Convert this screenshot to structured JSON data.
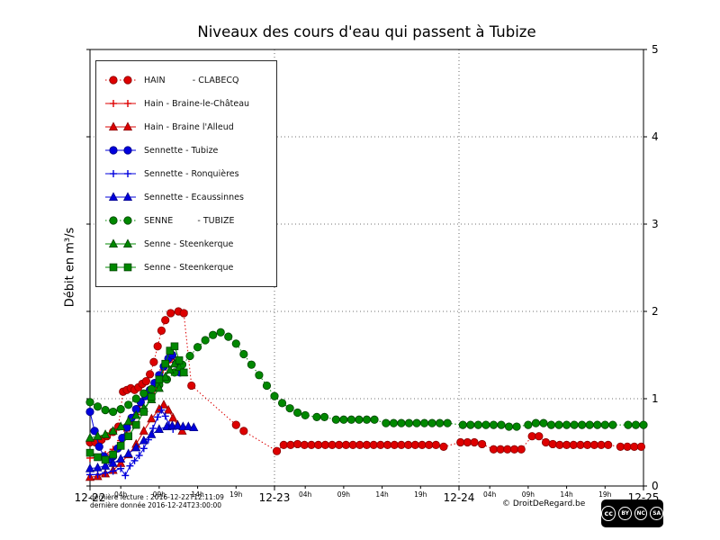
{
  "title": "Niveaux des cours d'eau qui passent à Tubize",
  "axis": {
    "ylabel": "Débit en m³/s"
  },
  "footer": {
    "last_read": "dernière lecture : 2016-12-22T12:11:09",
    "last_data": "dernière donnée  2016-12-24T23:00:00",
    "copyright": "© DroitDeRegard.be",
    "license_badges": [
      "cc",
      "BY",
      "NC",
      "SA"
    ]
  },
  "chart_data": {
    "type": "line",
    "title": "Niveaux des cours d'eau qui passent à Tubize",
    "xlabel": "",
    "ylabel": "Débit en m³/s",
    "x_unit": "hours since 2016-12-22 00:00",
    "xlim": [
      0,
      72
    ],
    "ylim": [
      0,
      5
    ],
    "grid": "dotted",
    "legend_position": "upper left",
    "yticks": [
      0,
      1,
      2,
      3,
      4,
      5
    ],
    "xticks": [
      {
        "t": 0,
        "label": "12-22",
        "major": true
      },
      {
        "t": 4,
        "label": "04h",
        "major": false
      },
      {
        "t": 9,
        "label": "09h",
        "major": false
      },
      {
        "t": 14,
        "label": "14h",
        "major": false
      },
      {
        "t": 19,
        "label": "19h",
        "major": false
      },
      {
        "t": 24,
        "label": "12-23",
        "major": true
      },
      {
        "t": 28,
        "label": "04h",
        "major": false
      },
      {
        "t": 33,
        "label": "09h",
        "major": false
      },
      {
        "t": 38,
        "label": "14h",
        "major": false
      },
      {
        "t": 43,
        "label": "19h",
        "major": false
      },
      {
        "t": 48,
        "label": "12-24",
        "major": true
      },
      {
        "t": 52,
        "label": "04h",
        "major": false
      },
      {
        "t": 57,
        "label": "09h",
        "major": false
      },
      {
        "t": 62,
        "label": "14h",
        "major": false
      },
      {
        "t": 67,
        "label": "19h",
        "major": false
      },
      {
        "t": 72,
        "label": "12-25",
        "major": true
      }
    ],
    "series": [
      {
        "name": "HAIN          - CLABECQ",
        "color": "#dd0000",
        "edge": "#880000",
        "marker": "circle",
        "line": "dotted",
        "points": [
          [
            0,
            0.5
          ],
          [
            0.7,
            0.5
          ],
          [
            1.5,
            0.53
          ],
          [
            2.2,
            0.57
          ],
          [
            3,
            0.62
          ],
          [
            3.7,
            0.68
          ],
          [
            4.3,
            1.08
          ],
          [
            4.8,
            1.1
          ],
          [
            5.3,
            1.12
          ],
          [
            5.8,
            1.1
          ],
          [
            6.3,
            1.13
          ],
          [
            6.8,
            1.17
          ],
          [
            7.3,
            1.2
          ],
          [
            7.8,
            1.28
          ],
          [
            8.3,
            1.42
          ],
          [
            8.8,
            1.6
          ],
          [
            9.3,
            1.78
          ],
          [
            9.8,
            1.9
          ],
          [
            10.5,
            1.98
          ],
          [
            11.5,
            2.0
          ],
          [
            12.2,
            1.98
          ],
          [
            13.2,
            1.15
          ],
          [
            19,
            0.7
          ],
          [
            20,
            0.63
          ],
          [
            24.3,
            0.4
          ],
          [
            25.2,
            0.47
          ],
          [
            26.1,
            0.47
          ],
          [
            27,
            0.48
          ],
          [
            27.9,
            0.47
          ],
          [
            28.8,
            0.47
          ],
          [
            29.7,
            0.47
          ],
          [
            30.6,
            0.47
          ],
          [
            31.5,
            0.47
          ],
          [
            32.4,
            0.47
          ],
          [
            33.3,
            0.47
          ],
          [
            34.2,
            0.47
          ],
          [
            35.1,
            0.47
          ],
          [
            36,
            0.47
          ],
          [
            36.9,
            0.47
          ],
          [
            37.8,
            0.47
          ],
          [
            38.7,
            0.47
          ],
          [
            39.6,
            0.47
          ],
          [
            40.5,
            0.47
          ],
          [
            41.4,
            0.47
          ],
          [
            42.3,
            0.47
          ],
          [
            43.2,
            0.47
          ],
          [
            44.1,
            0.47
          ],
          [
            45,
            0.47
          ],
          [
            46,
            0.45
          ],
          [
            48.2,
            0.5
          ],
          [
            49.1,
            0.5
          ],
          [
            50,
            0.5
          ],
          [
            51,
            0.48
          ],
          [
            52.5,
            0.42
          ],
          [
            53.4,
            0.42
          ],
          [
            54.3,
            0.42
          ],
          [
            55.2,
            0.42
          ],
          [
            56.1,
            0.42
          ],
          [
            57.5,
            0.57
          ],
          [
            58.4,
            0.57
          ],
          [
            59.3,
            0.5
          ],
          [
            60.2,
            0.48
          ],
          [
            61.1,
            0.47
          ],
          [
            62,
            0.47
          ],
          [
            62.9,
            0.47
          ],
          [
            63.8,
            0.47
          ],
          [
            64.7,
            0.47
          ],
          [
            65.6,
            0.47
          ],
          [
            66.5,
            0.47
          ],
          [
            67.4,
            0.47
          ],
          [
            69,
            0.45
          ],
          [
            69.9,
            0.45
          ],
          [
            70.8,
            0.45
          ],
          [
            71.7,
            0.45
          ]
        ]
      },
      {
        "name": "Hain - Braine-le-Château",
        "color": "#dd0000",
        "edge": "#880000",
        "marker": "plus",
        "line": "solid",
        "points": [
          [
            0,
            0.32
          ],
          [
            1,
            0.33
          ],
          [
            2,
            0.36
          ],
          [
            3,
            0.42
          ],
          [
            4,
            0.52
          ],
          [
            4.8,
            0.63
          ],
          [
            5.5,
            0.73
          ],
          [
            6,
            0.82
          ],
          [
            6.5,
            0.92
          ],
          [
            7,
            1.0
          ],
          [
            7.5,
            1.03
          ],
          [
            8,
            1.07
          ],
          [
            8.5,
            1.12
          ],
          [
            9,
            1.22
          ],
          [
            9.5,
            1.33
          ],
          [
            10,
            1.41
          ],
          [
            10.5,
            1.45
          ],
          [
            11,
            1.42
          ],
          [
            11.6,
            1.37
          ]
        ]
      },
      {
        "name": "Hain - Braine l'Alleud",
        "color": "#dd0000",
        "edge": "#880000",
        "marker": "triangle",
        "line": "solid",
        "points": [
          [
            0,
            0.1
          ],
          [
            1,
            0.11
          ],
          [
            2,
            0.14
          ],
          [
            3,
            0.18
          ],
          [
            4,
            0.26
          ],
          [
            5,
            0.36
          ],
          [
            6,
            0.48
          ],
          [
            7,
            0.63
          ],
          [
            8,
            0.77
          ],
          [
            9,
            0.88
          ],
          [
            9.6,
            0.93
          ],
          [
            10.2,
            0.87
          ],
          [
            10.8,
            0.78
          ],
          [
            11.4,
            0.7
          ],
          [
            12,
            0.63
          ]
        ]
      },
      {
        "name": "Sennette - Tubize",
        "color": "#0000dd",
        "edge": "#000088",
        "marker": "circle",
        "line": "solid",
        "points": [
          [
            0,
            0.85
          ],
          [
            0.6,
            0.63
          ],
          [
            1.2,
            0.45
          ],
          [
            1.8,
            0.34
          ],
          [
            2.4,
            0.3
          ],
          [
            3,
            0.34
          ],
          [
            3.6,
            0.43
          ],
          [
            4.2,
            0.55
          ],
          [
            4.8,
            0.67
          ],
          [
            5.4,
            0.78
          ],
          [
            6,
            0.88
          ],
          [
            6.6,
            0.96
          ],
          [
            7.2,
            1.03
          ],
          [
            7.8,
            1.1
          ],
          [
            8.4,
            1.18
          ],
          [
            9,
            1.27
          ],
          [
            9.6,
            1.37
          ],
          [
            10.2,
            1.46
          ],
          [
            10.7,
            1.5
          ],
          [
            11.2,
            1.4
          ],
          [
            11.7,
            1.3
          ]
        ]
      },
      {
        "name": "Sennette - Ronquières",
        "color": "#0000dd",
        "edge": "#000088",
        "marker": "plus",
        "line": "solid",
        "points": [
          [
            0,
            0.13
          ],
          [
            1,
            0.13
          ],
          [
            2,
            0.15
          ],
          [
            3,
            0.17
          ],
          [
            4,
            0.2
          ],
          [
            4.6,
            0.12
          ],
          [
            5.2,
            0.23
          ],
          [
            5.8,
            0.29
          ],
          [
            6.4,
            0.35
          ],
          [
            7,
            0.43
          ],
          [
            7.6,
            0.53
          ],
          [
            8.2,
            0.66
          ],
          [
            8.8,
            0.79
          ],
          [
            9.3,
            0.87
          ],
          [
            9.8,
            0.8
          ],
          [
            10.3,
            0.7
          ],
          [
            10.8,
            0.65
          ]
        ]
      },
      {
        "name": "Sennette - Ecaussinnes",
        "color": "#0000dd",
        "edge": "#000088",
        "marker": "triangle",
        "line": "solid",
        "points": [
          [
            0,
            0.2
          ],
          [
            1,
            0.21
          ],
          [
            2,
            0.23
          ],
          [
            3,
            0.26
          ],
          [
            4,
            0.31
          ],
          [
            5,
            0.37
          ],
          [
            6,
            0.44
          ],
          [
            7,
            0.52
          ],
          [
            8,
            0.59
          ],
          [
            9,
            0.65
          ],
          [
            10,
            0.68
          ],
          [
            10.7,
            0.69
          ],
          [
            11.4,
            0.69
          ],
          [
            12.1,
            0.68
          ],
          [
            12.8,
            0.68
          ],
          [
            13.5,
            0.67
          ]
        ]
      },
      {
        "name": "SENNE         - TUBIZE",
        "color": "#008800",
        "edge": "#004400",
        "marker": "circle",
        "line": "dotted",
        "points": [
          [
            0,
            0.96
          ],
          [
            1,
            0.91
          ],
          [
            2,
            0.87
          ],
          [
            3,
            0.85
          ],
          [
            4,
            0.88
          ],
          [
            5,
            0.93
          ],
          [
            6,
            1.0
          ],
          [
            7,
            1.06
          ],
          [
            8,
            1.11
          ],
          [
            9,
            1.16
          ],
          [
            10,
            1.22
          ],
          [
            11,
            1.3
          ],
          [
            12,
            1.39
          ],
          [
            13,
            1.49
          ],
          [
            14,
            1.59
          ],
          [
            15,
            1.67
          ],
          [
            16,
            1.73
          ],
          [
            17,
            1.76
          ],
          [
            18,
            1.71
          ],
          [
            19,
            1.63
          ],
          [
            20,
            1.51
          ],
          [
            21,
            1.39
          ],
          [
            22,
            1.27
          ],
          [
            23,
            1.15
          ],
          [
            24,
            1.03
          ],
          [
            25,
            0.95
          ],
          [
            26,
            0.89
          ],
          [
            27,
            0.84
          ],
          [
            28,
            0.81
          ],
          [
            29.5,
            0.79
          ],
          [
            30.5,
            0.79
          ],
          [
            32,
            0.76
          ],
          [
            33,
            0.76
          ],
          [
            34,
            0.76
          ],
          [
            35,
            0.76
          ],
          [
            36,
            0.76
          ],
          [
            37,
            0.76
          ],
          [
            38.5,
            0.72
          ],
          [
            39.5,
            0.72
          ],
          [
            40.5,
            0.72
          ],
          [
            41.5,
            0.72
          ],
          [
            42.5,
            0.72
          ],
          [
            43.5,
            0.72
          ],
          [
            44.5,
            0.72
          ],
          [
            45.5,
            0.72
          ],
          [
            46.5,
            0.72
          ],
          [
            48.5,
            0.7
          ],
          [
            49.5,
            0.7
          ],
          [
            50.5,
            0.7
          ],
          [
            51.5,
            0.7
          ],
          [
            52.5,
            0.7
          ],
          [
            53.5,
            0.7
          ],
          [
            54.5,
            0.68
          ],
          [
            55.5,
            0.68
          ],
          [
            57,
            0.7
          ],
          [
            58,
            0.72
          ],
          [
            59,
            0.72
          ],
          [
            60,
            0.7
          ],
          [
            61,
            0.7
          ],
          [
            62,
            0.7
          ],
          [
            63,
            0.7
          ],
          [
            64,
            0.7
          ],
          [
            65,
            0.7
          ],
          [
            66,
            0.7
          ],
          [
            67,
            0.7
          ],
          [
            68,
            0.7
          ],
          [
            70,
            0.7
          ],
          [
            71,
            0.7
          ],
          [
            72,
            0.7
          ]
        ]
      },
      {
        "name": "Senne - Steenkerque",
        "color": "#008800",
        "edge": "#004400",
        "marker": "triangle",
        "line": "solid",
        "points": [
          [
            0,
            0.55
          ],
          [
            1,
            0.57
          ],
          [
            2,
            0.59
          ],
          [
            3,
            0.63
          ],
          [
            4,
            0.68
          ],
          [
            5,
            0.74
          ],
          [
            6,
            0.81
          ],
          [
            7,
            0.89
          ],
          [
            8,
            0.99
          ],
          [
            9,
            1.12
          ],
          [
            9.8,
            1.25
          ],
          [
            10.4,
            1.33
          ],
          [
            11,
            1.4
          ],
          [
            11.6,
            1.36
          ],
          [
            12.2,
            1.3
          ]
        ]
      },
      {
        "name": "Senne - Steenkerque",
        "color": "#008800",
        "edge": "#004400",
        "marker": "square",
        "line": "solid",
        "points": [
          [
            0,
            0.38
          ],
          [
            1,
            0.33
          ],
          [
            2,
            0.3
          ],
          [
            3,
            0.36
          ],
          [
            4,
            0.46
          ],
          [
            5,
            0.57
          ],
          [
            6,
            0.7
          ],
          [
            7,
            0.85
          ],
          [
            8,
            1.02
          ],
          [
            9,
            1.22
          ],
          [
            9.8,
            1.4
          ],
          [
            10.4,
            1.55
          ],
          [
            11,
            1.6
          ],
          [
            11.6,
            1.44
          ],
          [
            12.2,
            1.3
          ]
        ]
      }
    ]
  }
}
